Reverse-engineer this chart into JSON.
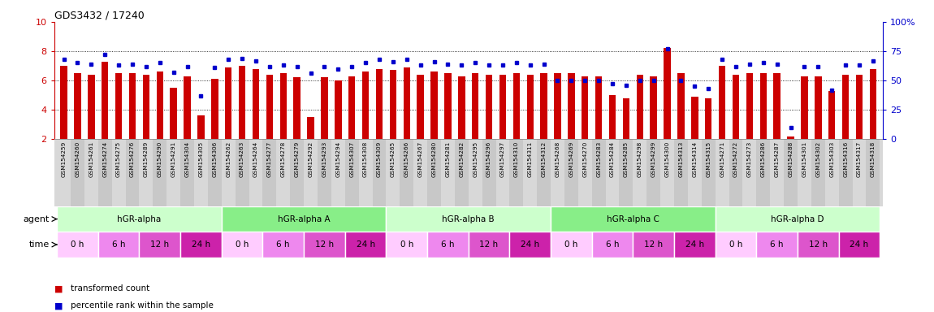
{
  "title": "GDS3432 / 17240",
  "samples": [
    "GSM154259",
    "GSM154260",
    "GSM154261",
    "GSM154274",
    "GSM154275",
    "GSM154276",
    "GSM154289",
    "GSM154290",
    "GSM154291",
    "GSM154304",
    "GSM154305",
    "GSM154306",
    "GSM154262",
    "GSM154263",
    "GSM154264",
    "GSM154277",
    "GSM154278",
    "GSM154279",
    "GSM154292",
    "GSM154293",
    "GSM154294",
    "GSM154307",
    "GSM154308",
    "GSM154309",
    "GSM154265",
    "GSM154266",
    "GSM154267",
    "GSM154280",
    "GSM154281",
    "GSM154282",
    "GSM154295",
    "GSM154296",
    "GSM154297",
    "GSM154310",
    "GSM154311",
    "GSM154312",
    "GSM154268",
    "GSM154269",
    "GSM154270",
    "GSM154283",
    "GSM154284",
    "GSM154285",
    "GSM154298",
    "GSM154299",
    "GSM154300",
    "GSM154313",
    "GSM154314",
    "GSM154315",
    "GSM154271",
    "GSM154272",
    "GSM154273",
    "GSM154286",
    "GSM154287",
    "GSM154288",
    "GSM154301",
    "GSM154302",
    "GSM154303",
    "GSM154316",
    "GSM154317",
    "GSM154318"
  ],
  "red_values": [
    7.0,
    6.5,
    6.4,
    7.3,
    6.5,
    6.5,
    6.4,
    6.6,
    5.5,
    6.3,
    3.6,
    6.1,
    6.9,
    7.0,
    6.8,
    6.4,
    6.5,
    6.2,
    3.5,
    6.2,
    6.0,
    6.3,
    6.6,
    6.8,
    6.7,
    6.9,
    6.4,
    6.6,
    6.5,
    6.3,
    6.5,
    6.4,
    6.4,
    6.5,
    6.4,
    6.5,
    6.5,
    6.5,
    6.3,
    6.3,
    5.0,
    4.8,
    6.4,
    6.3,
    8.2,
    6.5,
    4.9,
    4.8,
    7.0,
    6.4,
    6.5,
    6.5,
    6.5,
    2.2,
    6.3,
    6.3,
    5.3,
    6.4,
    6.4,
    6.8
  ],
  "blue_values": [
    68,
    65,
    64,
    72,
    63,
    64,
    62,
    65,
    57,
    62,
    37,
    61,
    68,
    69,
    67,
    62,
    63,
    62,
    56,
    62,
    60,
    62,
    65,
    68,
    66,
    68,
    63,
    66,
    64,
    63,
    65,
    63,
    63,
    65,
    63,
    64,
    50,
    50,
    50,
    50,
    47,
    46,
    50,
    50,
    77,
    50,
    45,
    43,
    68,
    62,
    64,
    65,
    64,
    10,
    62,
    62,
    42,
    63,
    63,
    67
  ],
  "agents": [
    {
      "label": "hGR-alpha",
      "start": 0,
      "end": 12,
      "color": "#ccffcc"
    },
    {
      "label": "hGR-alpha A",
      "start": 12,
      "end": 24,
      "color": "#88ee88"
    },
    {
      "label": "hGR-alpha B",
      "start": 24,
      "end": 36,
      "color": "#ccffcc"
    },
    {
      "label": "hGR-alpha C",
      "start": 36,
      "end": 48,
      "color": "#88ee88"
    },
    {
      "label": "hGR-alpha D",
      "start": 48,
      "end": 60,
      "color": "#ccffcc"
    }
  ],
  "times": [
    {
      "label": "0 h",
      "start": 0,
      "end": 3,
      "color": "#ffccff"
    },
    {
      "label": "6 h",
      "start": 3,
      "end": 6,
      "color": "#ee88ee"
    },
    {
      "label": "12 h",
      "start": 6,
      "end": 9,
      "color": "#dd55cc"
    },
    {
      "label": "24 h",
      "start": 9,
      "end": 12,
      "color": "#cc22aa"
    },
    {
      "label": "0 h",
      "start": 12,
      "end": 15,
      "color": "#ffccff"
    },
    {
      "label": "6 h",
      "start": 15,
      "end": 18,
      "color": "#ee88ee"
    },
    {
      "label": "12 h",
      "start": 18,
      "end": 21,
      "color": "#dd55cc"
    },
    {
      "label": "24 h",
      "start": 21,
      "end": 24,
      "color": "#cc22aa"
    },
    {
      "label": "0 h",
      "start": 24,
      "end": 27,
      "color": "#ffccff"
    },
    {
      "label": "6 h",
      "start": 27,
      "end": 30,
      "color": "#ee88ee"
    },
    {
      "label": "12 h",
      "start": 30,
      "end": 33,
      "color": "#dd55cc"
    },
    {
      "label": "24 h",
      "start": 33,
      "end": 36,
      "color": "#cc22aa"
    },
    {
      "label": "0 h",
      "start": 36,
      "end": 39,
      "color": "#ffccff"
    },
    {
      "label": "6 h",
      "start": 39,
      "end": 42,
      "color": "#ee88ee"
    },
    {
      "label": "12 h",
      "start": 42,
      "end": 45,
      "color": "#dd55cc"
    },
    {
      "label": "24 h",
      "start": 45,
      "end": 48,
      "color": "#cc22aa"
    },
    {
      "label": "0 h",
      "start": 48,
      "end": 51,
      "color": "#ffccff"
    },
    {
      "label": "6 h",
      "start": 51,
      "end": 54,
      "color": "#ee88ee"
    },
    {
      "label": "12 h",
      "start": 54,
      "end": 57,
      "color": "#dd55cc"
    },
    {
      "label": "24 h",
      "start": 57,
      "end": 60,
      "color": "#cc22aa"
    }
  ],
  "ylim_left": [
    2,
    10
  ],
  "ylim_right": [
    0,
    100
  ],
  "yticks_left": [
    2,
    4,
    6,
    8,
    10
  ],
  "yticks_right": [
    0,
    25,
    50,
    75,
    100
  ],
  "bar_color": "#cc0000",
  "dot_color": "#0000cc",
  "bg_color": "#ffffff",
  "tick_color_left": "#cc0000",
  "tick_color_right": "#0000cc",
  "legend_red": "transformed count",
  "legend_blue": "percentile rank within the sample",
  "hgridlines": [
    4,
    6,
    8
  ]
}
